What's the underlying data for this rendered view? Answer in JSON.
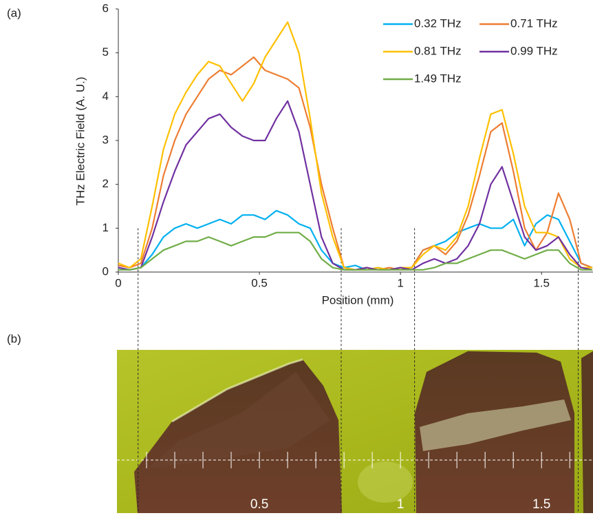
{
  "chart_data": {
    "type": "line",
    "panel_label": "(a)",
    "x_label": "Position (mm)",
    "y_label": "THz Electric Field (A. U.)",
    "xlim": [
      0,
      1.68
    ],
    "ylim": [
      0,
      6
    ],
    "xticks": [
      0,
      0.5,
      1,
      1.5
    ],
    "yticks": [
      0,
      1,
      2,
      3,
      4,
      5,
      6
    ],
    "grid": false,
    "vlines": [
      0.07,
      0.79,
      1.05,
      1.63
    ],
    "x": [
      0,
      0.04,
      0.08,
      0.12,
      0.16,
      0.2,
      0.24,
      0.28,
      0.32,
      0.36,
      0.4,
      0.44,
      0.48,
      0.52,
      0.56,
      0.6,
      0.64,
      0.68,
      0.72,
      0.76,
      0.8,
      0.84,
      0.88,
      0.92,
      0.96,
      1.0,
      1.04,
      1.08,
      1.12,
      1.16,
      1.2,
      1.24,
      1.28,
      1.32,
      1.36,
      1.4,
      1.44,
      1.48,
      1.52,
      1.56,
      1.6,
      1.64,
      1.68
    ],
    "series": [
      {
        "name": "0.32 THz",
        "color": "#00b0f0",
        "values": [
          0.1,
          0.05,
          0.1,
          0.4,
          0.8,
          1.0,
          1.1,
          1.0,
          1.1,
          1.2,
          1.1,
          1.3,
          1.3,
          1.2,
          1.4,
          1.3,
          1.1,
          1.0,
          0.5,
          0.2,
          0.1,
          0.15,
          0.05,
          0.1,
          0.05,
          0.1,
          0.1,
          0.5,
          0.6,
          0.7,
          0.9,
          1.0,
          1.1,
          1.0,
          1.0,
          1.2,
          0.6,
          1.1,
          1.3,
          1.2,
          0.7,
          0.2,
          0.1
        ]
      },
      {
        "name": "0.71 THz",
        "color": "#ed7d31",
        "values": [
          0.15,
          0.1,
          0.2,
          1.0,
          2.2,
          3.0,
          3.6,
          4.0,
          4.4,
          4.6,
          4.5,
          4.7,
          4.9,
          4.6,
          4.5,
          4.4,
          4.2,
          3.3,
          2.0,
          1.0,
          0.1,
          0.05,
          0.1,
          0.05,
          0.1,
          0.05,
          0.1,
          0.5,
          0.6,
          0.4,
          0.7,
          1.3,
          2.2,
          3.2,
          3.4,
          2.3,
          1.0,
          0.5,
          0.9,
          1.8,
          1.2,
          0.2,
          0.1
        ]
      },
      {
        "name": "0.81 THz",
        "color": "#ffc000",
        "values": [
          0.2,
          0.1,
          0.3,
          1.5,
          2.8,
          3.6,
          4.1,
          4.5,
          4.8,
          4.7,
          4.3,
          3.9,
          4.3,
          4.9,
          5.3,
          5.7,
          5.0,
          3.5,
          1.8,
          0.8,
          0.1,
          0.05,
          0.05,
          0.1,
          0.05,
          0.1,
          0.1,
          0.4,
          0.6,
          0.5,
          0.8,
          1.5,
          2.6,
          3.6,
          3.7,
          2.7,
          1.5,
          0.9,
          0.9,
          0.8,
          0.3,
          0.1,
          0.1
        ]
      },
      {
        "name": "0.99 THz",
        "color": "#7030a0",
        "values": [
          0.1,
          0.05,
          0.1,
          0.8,
          1.6,
          2.3,
          2.9,
          3.2,
          3.5,
          3.6,
          3.3,
          3.1,
          3.0,
          3.0,
          3.5,
          3.9,
          3.2,
          2.0,
          0.8,
          0.2,
          0.05,
          0.05,
          0.1,
          0.05,
          0.05,
          0.1,
          0.05,
          0.2,
          0.3,
          0.2,
          0.3,
          0.6,
          1.1,
          2.0,
          2.4,
          1.6,
          0.8,
          0.5,
          0.6,
          0.8,
          0.4,
          0.1,
          0.05
        ]
      },
      {
        "name": "1.49 THz",
        "color": "#70ad47",
        "values": [
          0.05,
          0.05,
          0.1,
          0.3,
          0.5,
          0.6,
          0.7,
          0.7,
          0.8,
          0.7,
          0.6,
          0.7,
          0.8,
          0.8,
          0.9,
          0.9,
          0.9,
          0.7,
          0.3,
          0.1,
          0.05,
          0.05,
          0.05,
          0.05,
          0.05,
          0.05,
          0.05,
          0.05,
          0.1,
          0.2,
          0.2,
          0.3,
          0.4,
          0.5,
          0.5,
          0.4,
          0.3,
          0.4,
          0.5,
          0.5,
          0.2,
          0.05,
          0.05
        ]
      }
    ],
    "image": {
      "panel_label": "(b)",
      "scale_ticks": [
        {
          "value": 0.5,
          "label": "0.5"
        },
        {
          "value": 1,
          "label": "1"
        },
        {
          "value": 1.5,
          "label": "1.5"
        }
      ],
      "minor_ticks": [
        0.1,
        0.2,
        0.3,
        0.4,
        0.5,
        0.6,
        0.7,
        0.8,
        0.9,
        1.0,
        1.1,
        1.2,
        1.3,
        1.4,
        1.5,
        1.6
      ]
    }
  }
}
